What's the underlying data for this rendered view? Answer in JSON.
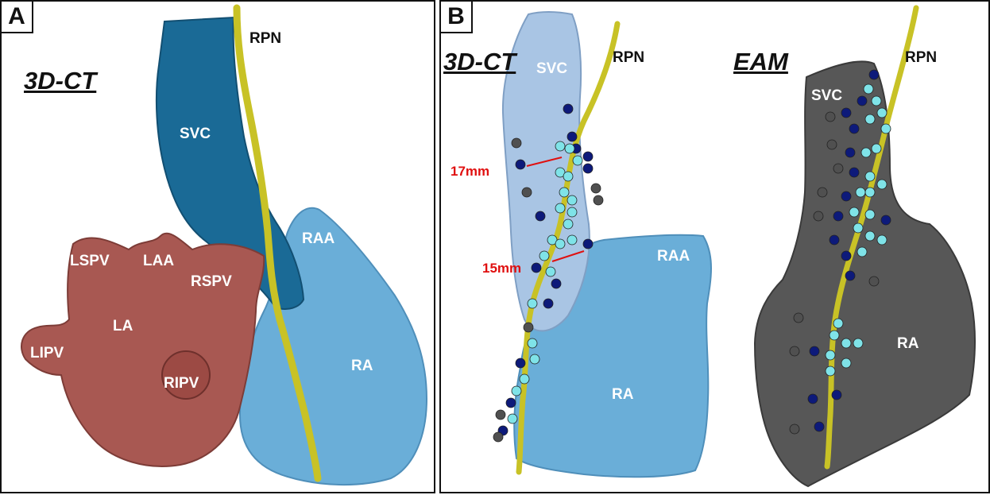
{
  "panel_a": {
    "letter": "A",
    "modality": "3D-CT",
    "labels": {
      "rpn": "RPN",
      "svc": "SVC",
      "raa": "RAA",
      "ra": "RA",
      "lspv": "LSPV",
      "laa": "LAA",
      "rspv": "RSPV",
      "la": "LA",
      "lipv": "LIPV",
      "ripv": "RIPV"
    }
  },
  "panel_b": {
    "letter": "B",
    "ct": {
      "modality": "3D-CT",
      "labels": {
        "svc": "SVC",
        "rpn": "RPN",
        "raa": "RAA",
        "ra": "RA"
      },
      "distances": [
        "17mm",
        "15mm"
      ]
    },
    "eam": {
      "modality": "EAM",
      "labels": {
        "svc": "SVC",
        "rpn": "RPN",
        "ra": "RA"
      }
    }
  },
  "colors": {
    "svc_blue": "#1a6a96",
    "ra_lightblue": "#6aaed8",
    "la_red": "#a85852",
    "nerve_yellow": "#c8c226",
    "svc_pale": "#a9c5e4",
    "eam_gray": "#575757",
    "marker_cyan": "#7fe3e8",
    "marker_navy": "#0d1a7a",
    "marker_gray": "#505050",
    "distance_red": "#e01010"
  }
}
